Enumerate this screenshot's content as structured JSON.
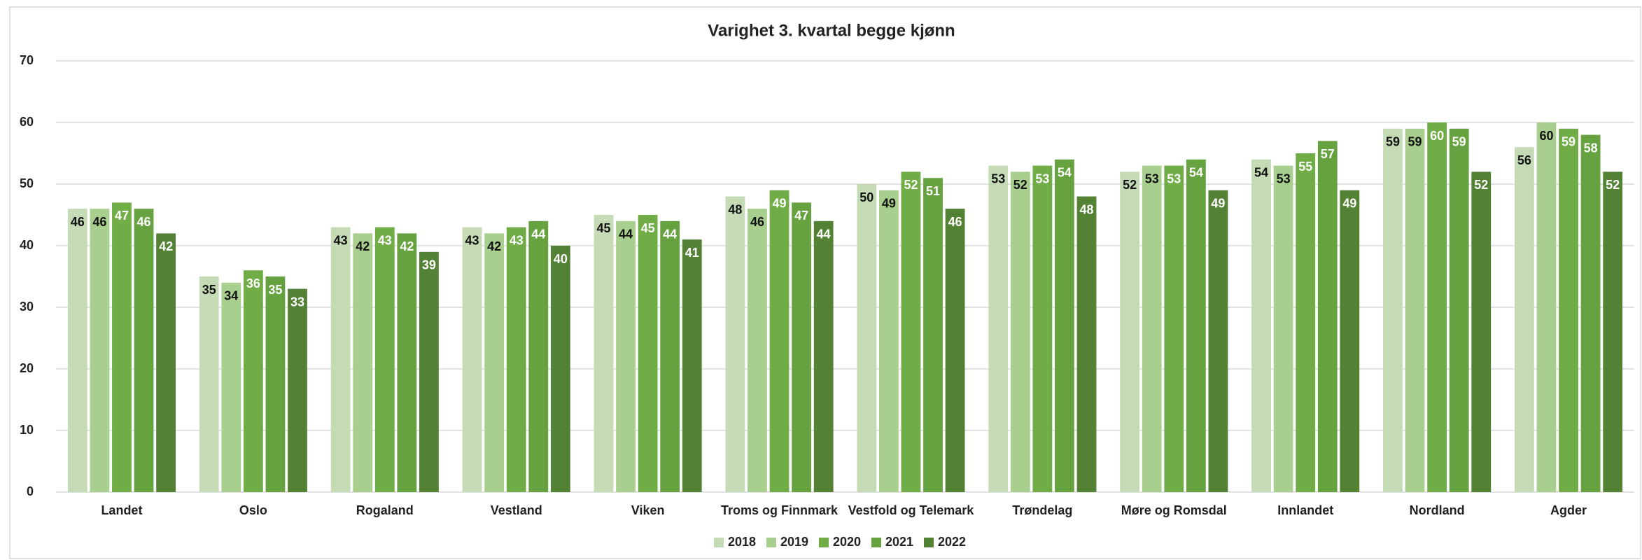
{
  "chart_data": {
    "type": "bar",
    "title": "Varighet 3. kvartal begge kjønn",
    "categories": [
      "Landet",
      "Oslo",
      "Rogaland",
      "Vestland",
      "Viken",
      "Troms og Finnmark",
      "Vestfold og Telemark",
      "Trøndelag",
      "Møre og Romsdal",
      "Innlandet",
      "Nordland",
      "Agder"
    ],
    "series": [
      {
        "name": "2018",
        "color": "#c5dbb6",
        "values": [
          46,
          35,
          43,
          43,
          45,
          48,
          50,
          53,
          52,
          54,
          59,
          56
        ]
      },
      {
        "name": "2019",
        "color": "#a9cf8f",
        "values": [
          46,
          34,
          42,
          42,
          44,
          46,
          49,
          52,
          53,
          53,
          59,
          60
        ]
      },
      {
        "name": "2020",
        "color": "#70ad47",
        "values": [
          47,
          36,
          43,
          43,
          45,
          49,
          52,
          53,
          53,
          55,
          60,
          59
        ]
      },
      {
        "name": "2021",
        "color": "#66a23f",
        "values": [
          46,
          35,
          42,
          44,
          44,
          47,
          51,
          54,
          54,
          57,
          59,
          58
        ]
      },
      {
        "name": "2022",
        "color": "#548235",
        "values": [
          42,
          33,
          39,
          40,
          41,
          44,
          46,
          48,
          49,
          49,
          52,
          52
        ]
      }
    ],
    "ylim": [
      0,
      70
    ],
    "yticks": [
      0,
      10,
      20,
      30,
      40,
      50,
      60,
      70
    ],
    "grid": true,
    "legend": "bottom"
  }
}
